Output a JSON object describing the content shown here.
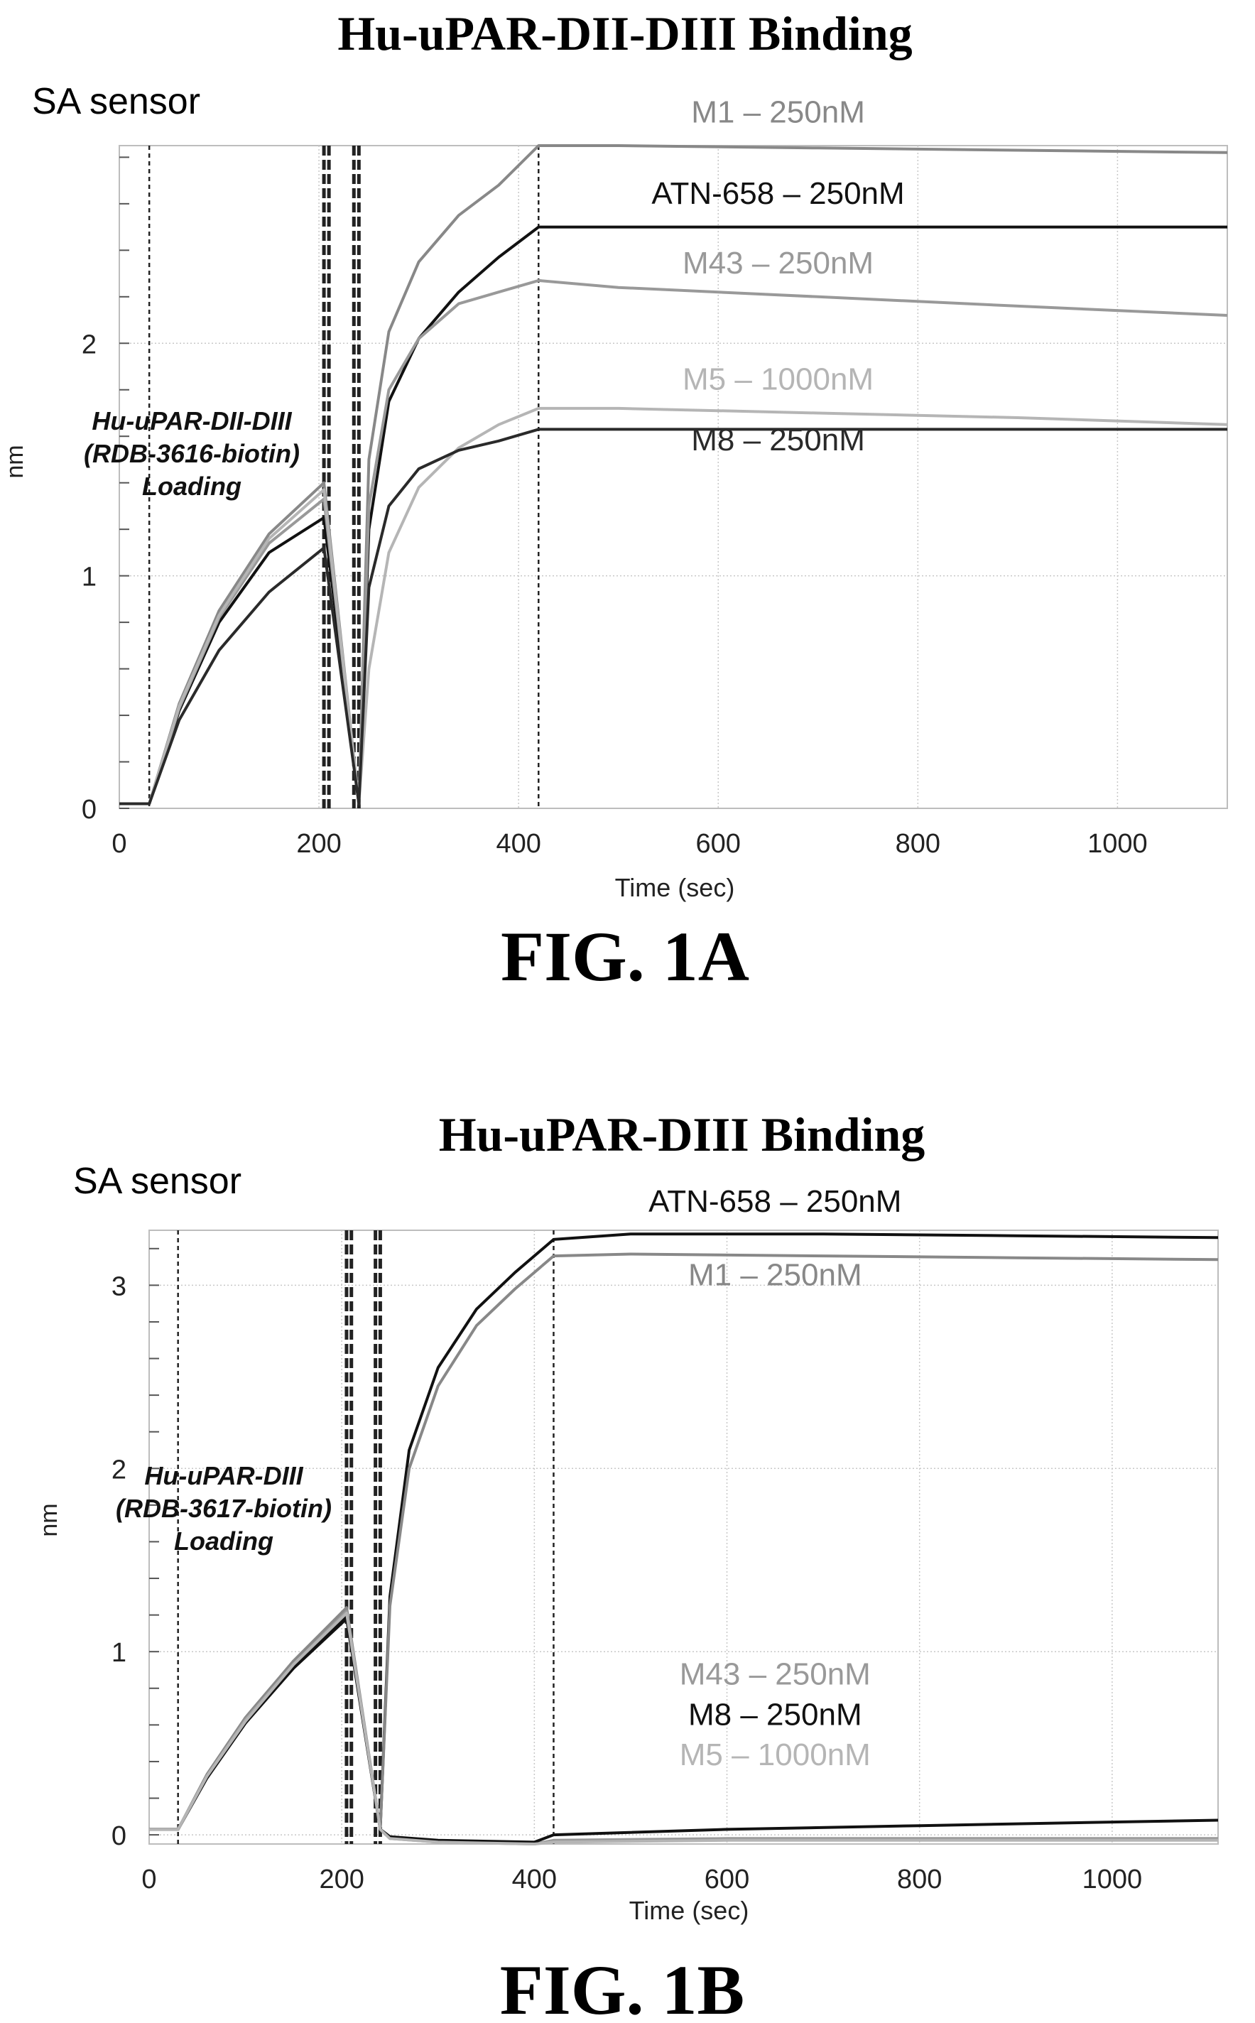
{
  "chart_data": [
    {
      "type": "line",
      "title": "Hu-uPAR-DII-DIII Binding",
      "corner_label": "SA sensor",
      "xlabel": "Time (sec)",
      "ylabel": "nm",
      "xlim": [
        0,
        1110
      ],
      "ylim": [
        0,
        2.85
      ],
      "x_ticks": [
        0,
        200,
        400,
        600,
        800,
        1000
      ],
      "y_ticks": [
        0,
        1,
        2
      ],
      "grid": true,
      "dashed_markers_x": [
        30,
        205,
        210,
        235,
        240,
        420
      ],
      "annotation": [
        "Hu-uPAR-DII-DIII",
        "(RDB-3616-biotin)",
        "Loading"
      ],
      "figure_label": "FIG. 1A",
      "series": [
        {
          "name": "M1 – 250nM",
          "color": "#888888",
          "x": [
            0,
            30,
            60,
            100,
            150,
            205,
            240,
            250,
            270,
            300,
            340,
            380,
            420,
            500,
            700,
            900,
            1110
          ],
          "y": [
            0.02,
            0.02,
            0.45,
            0.85,
            1.18,
            1.4,
            0.02,
            1.5,
            2.05,
            2.35,
            2.55,
            2.68,
            2.85,
            2.85,
            2.84,
            2.83,
            2.82
          ]
        },
        {
          "name": "ATN-658 – 250nM",
          "color": "#111111",
          "x": [
            0,
            30,
            60,
            100,
            150,
            205,
            240,
            250,
            270,
            300,
            340,
            380,
            420,
            500,
            700,
            900,
            1110
          ],
          "y": [
            0.02,
            0.02,
            0.42,
            0.8,
            1.1,
            1.25,
            0.02,
            1.2,
            1.75,
            2.02,
            2.22,
            2.37,
            2.5,
            2.5,
            2.5,
            2.5,
            2.5
          ]
        },
        {
          "name": "M43 – 250nM",
          "color": "#999999",
          "x": [
            0,
            30,
            60,
            100,
            150,
            205,
            240,
            250,
            270,
            300,
            340,
            380,
            420,
            500,
            700,
            900,
            1110
          ],
          "y": [
            0.02,
            0.02,
            0.43,
            0.82,
            1.14,
            1.33,
            0.02,
            1.3,
            1.8,
            2.02,
            2.17,
            2.22,
            2.27,
            2.24,
            2.2,
            2.16,
            2.12
          ]
        },
        {
          "name": "M5 – 1000nM",
          "color": "#b5b5b5",
          "x": [
            0,
            30,
            60,
            100,
            150,
            205,
            240,
            250,
            270,
            300,
            340,
            380,
            420,
            500,
            700,
            900,
            1110
          ],
          "y": [
            0.02,
            0.02,
            0.44,
            0.83,
            1.16,
            1.37,
            0.02,
            0.6,
            1.1,
            1.38,
            1.55,
            1.65,
            1.72,
            1.72,
            1.7,
            1.68,
            1.65
          ]
        },
        {
          "name": "M8 – 250nM",
          "color": "#2a2a2a",
          "x": [
            0,
            30,
            60,
            100,
            150,
            205,
            240,
            250,
            270,
            300,
            340,
            380,
            420,
            500,
            700,
            900,
            1110
          ],
          "y": [
            0.02,
            0.02,
            0.38,
            0.68,
            0.93,
            1.12,
            0.02,
            0.95,
            1.3,
            1.46,
            1.54,
            1.58,
            1.63,
            1.63,
            1.63,
            1.63,
            1.63
          ]
        }
      ],
      "label_positions_y": [
        2.95,
        2.6,
        2.3,
        1.8,
        1.54
      ],
      "label_x": 660
    },
    {
      "type": "line",
      "title": "Hu-uPAR-DIII Binding",
      "corner_label": "SA sensor",
      "xlabel": "Time (sec)",
      "ylabel": "nm",
      "xlim": [
        0,
        1110
      ],
      "ylim": [
        -0.05,
        3.3
      ],
      "x_ticks": [
        0,
        200,
        400,
        600,
        800,
        1000
      ],
      "y_ticks": [
        0,
        1,
        2,
        3
      ],
      "grid": true,
      "dashed_markers_x": [
        30,
        205,
        210,
        235,
        240,
        420
      ],
      "annotation": [
        "Hu-uPAR-DIII",
        "(RDB-3617-biotin)",
        "Loading"
      ],
      "figure_label": "FIG. 1B",
      "series": [
        {
          "name": "ATN-658 – 250nM",
          "color": "#111111",
          "x": [
            0,
            30,
            60,
            100,
            150,
            205,
            240,
            250,
            270,
            300,
            340,
            380,
            420,
            500,
            700,
            900,
            1110
          ],
          "y": [
            0.03,
            0.03,
            0.32,
            0.62,
            0.92,
            1.2,
            0.03,
            1.3,
            2.1,
            2.55,
            2.87,
            3.07,
            3.25,
            3.28,
            3.28,
            3.27,
            3.26
          ]
        },
        {
          "name": "M1 – 250nM",
          "color": "#888888",
          "x": [
            0,
            30,
            60,
            100,
            150,
            205,
            240,
            250,
            270,
            300,
            340,
            380,
            420,
            500,
            700,
            900,
            1110
          ],
          "y": [
            0.03,
            0.03,
            0.33,
            0.64,
            0.95,
            1.24,
            0.03,
            1.25,
            2.0,
            2.45,
            2.78,
            2.98,
            3.16,
            3.17,
            3.16,
            3.15,
            3.14
          ]
        },
        {
          "name": "M43 – 250nM",
          "color": "#999999",
          "x": [
            0,
            30,
            60,
            100,
            150,
            205,
            240,
            250,
            300,
            400,
            420,
            600,
            800,
            1000,
            1110
          ],
          "y": [
            0.03,
            0.03,
            0.32,
            0.63,
            0.93,
            1.22,
            0.03,
            -0.02,
            -0.04,
            -0.05,
            -0.03,
            -0.02,
            -0.02,
            -0.02,
            -0.02
          ]
        },
        {
          "name": "M8 – 250nM",
          "color": "#111111",
          "x": [
            0,
            30,
            60,
            100,
            150,
            205,
            240,
            250,
            300,
            400,
            420,
            600,
            800,
            1000,
            1110
          ],
          "y": [
            0.03,
            0.03,
            0.31,
            0.61,
            0.91,
            1.18,
            0.03,
            -0.01,
            -0.03,
            -0.04,
            0.0,
            0.03,
            0.05,
            0.07,
            0.08
          ]
        },
        {
          "name": "M5 – 1000nM",
          "color": "#b5b5b5",
          "x": [
            0,
            30,
            60,
            100,
            150,
            205,
            240,
            250,
            300,
            400,
            420,
            600,
            800,
            1000,
            1110
          ],
          "y": [
            0.03,
            0.03,
            0.32,
            0.62,
            0.93,
            1.21,
            0.03,
            -0.02,
            -0.04,
            -0.05,
            -0.04,
            -0.03,
            -0.03,
            -0.03,
            -0.03
          ]
        }
      ],
      "label_positions_y": [
        3.4,
        3.0,
        0.82,
        0.6,
        0.38
      ],
      "label_x": 650
    }
  ]
}
